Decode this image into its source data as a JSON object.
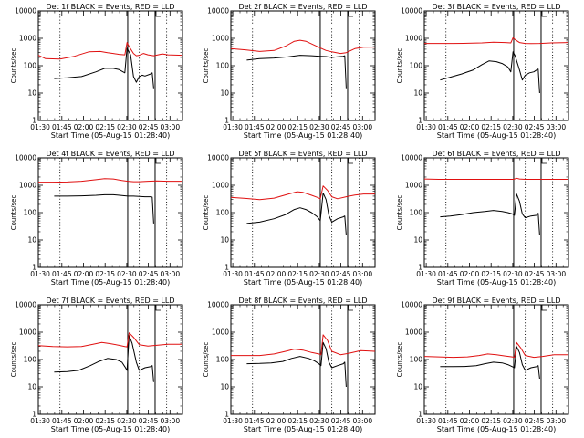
{
  "colors": {
    "events": "#000000",
    "lld": "#e01010",
    "frame": "#000000",
    "marker_solid": "#000000",
    "marker_dotted": "#000000"
  },
  "chart_data": [
    {
      "type": "line",
      "title": "Det 1f BLACK = Events, RED = LLD",
      "xlabel": "Start Time (05-Aug-15 01:28:40)",
      "ylabel": "Counts/sec",
      "xticks": [
        "01:30",
        "01:45",
        "02:00",
        "02:15",
        "02:30",
        "02:45",
        "03:00"
      ],
      "xlim_min": [
        0,
        100
      ],
      "y_log": true,
      "ylim": [
        1,
        10000
      ],
      "yticks": [
        "1",
        "10",
        "100",
        "1000",
        "10000"
      ],
      "markers_dotted_min": [
        15,
        70,
        89
      ],
      "markers_solid_min": [
        62,
        81
      ],
      "series": [
        {
          "name": "BLACK",
          "x": [
            11,
            20,
            30,
            40,
            46,
            52,
            56,
            60,
            61.5,
            64,
            66,
            68,
            70,
            72,
            74,
            78,
            79,
            80
          ],
          "y": [
            34,
            36,
            40,
            60,
            80,
            80,
            72,
            55,
            440,
            250,
            40,
            25,
            40,
            45,
            42,
            50,
            55,
            15
          ]
        },
        {
          "name": "RED",
          "x": [
            0,
            5,
            15,
            25,
            35,
            43,
            48,
            52,
            56,
            60,
            61.5,
            63,
            66,
            68,
            70,
            73,
            76,
            80,
            86,
            90,
            100
          ],
          "y": [
            240,
            180,
            175,
            220,
            320,
            330,
            300,
            280,
            260,
            250,
            700,
            500,
            280,
            230,
            240,
            280,
            250,
            230,
            270,
            250,
            240
          ]
        }
      ]
    },
    {
      "type": "line",
      "title": "Det 2f BLACK = Events, RED = LLD",
      "xlabel": "Start Time (05-Aug-15 01:28:40)",
      "ylabel": "Counts/sec",
      "xticks": [
        "01:30",
        "01:45",
        "02:00",
        "02:15",
        "02:30",
        "02:45",
        "03:00"
      ],
      "xlim_min": [
        0,
        100
      ],
      "y_log": true,
      "ylim": [
        1,
        10000
      ],
      "yticks": [
        "1",
        "10",
        "100",
        "1000",
        "10000"
      ],
      "markers_dotted_min": [
        15,
        70,
        89
      ],
      "markers_solid_min": [
        62,
        81
      ],
      "series": [
        {
          "name": "BLACK",
          "x": [
            11,
            20,
            30,
            40,
            48,
            56,
            62,
            66,
            70,
            74,
            78,
            79,
            80
          ],
          "y": [
            160,
            180,
            190,
            210,
            240,
            230,
            220,
            215,
            200,
            210,
            220,
            230,
            15
          ]
        },
        {
          "name": "RED",
          "x": [
            0,
            10,
            20,
            30,
            38,
            44,
            48,
            52,
            58,
            64,
            66,
            70,
            76,
            80,
            86,
            92,
            100
          ],
          "y": [
            420,
            380,
            330,
            360,
            520,
            780,
            850,
            780,
            560,
            400,
            360,
            320,
            280,
            300,
            420,
            470,
            480
          ]
        }
      ]
    },
    {
      "type": "line",
      "title": "Det 3f BLACK = Events, RED = LLD",
      "xlabel": "Start Time (05-Aug-15 01:28:40)",
      "ylabel": "Counts/sec",
      "xticks": [
        "01:30",
        "01:45",
        "02:00",
        "02:15",
        "02:30",
        "02:45",
        "03:00"
      ],
      "xlim_min": [
        0,
        100
      ],
      "y_log": true,
      "ylim": [
        1,
        10000
      ],
      "yticks": [
        "1",
        "10",
        "100",
        "1000",
        "10000"
      ],
      "markers_dotted_min": [
        15,
        70,
        89
      ],
      "markers_solid_min": [
        62,
        81
      ],
      "series": [
        {
          "name": "BLACK",
          "x": [
            11,
            18,
            26,
            34,
            40,
            45,
            50,
            54,
            58,
            60,
            61.5,
            63,
            66,
            68,
            70,
            73,
            76,
            78,
            79,
            80
          ],
          "y": [
            30,
            38,
            50,
            70,
            110,
            150,
            140,
            120,
            90,
            60,
            320,
            230,
            70,
            30,
            45,
            55,
            60,
            70,
            75,
            10
          ]
        },
        {
          "name": "RED",
          "x": [
            0,
            10,
            20,
            30,
            40,
            48,
            56,
            60,
            61.5,
            63,
            66,
            70,
            74,
            80,
            88,
            100
          ],
          "y": [
            650,
            650,
            650,
            660,
            680,
            720,
            700,
            680,
            1050,
            900,
            700,
            650,
            640,
            650,
            680,
            700
          ]
        }
      ]
    },
    {
      "type": "line",
      "title": "Det 4f BLACK = Events, RED = LLD",
      "xlabel": "Start Time (05-Aug-15 01:28:40)",
      "ylabel": "Counts/sec",
      "xticks": [
        "01:30",
        "01:45",
        "02:00",
        "02:15",
        "02:30",
        "02:45",
        "03:00"
      ],
      "xlim_min": [
        0,
        100
      ],
      "y_log": true,
      "ylim": [
        1,
        10000
      ],
      "yticks": [
        "1",
        "10",
        "100",
        "1000",
        "10000"
      ],
      "markers_dotted_min": [
        15,
        70,
        89
      ],
      "markers_solid_min": [
        62,
        81
      ],
      "series": [
        {
          "name": "BLACK",
          "x": [
            11,
            20,
            30,
            40,
            46,
            52,
            58,
            62,
            66,
            70,
            74,
            78,
            79,
            80
          ],
          "y": [
            400,
            400,
            410,
            430,
            450,
            450,
            420,
            400,
            400,
            390,
            380,
            380,
            370,
            40
          ]
        },
        {
          "name": "RED",
          "x": [
            0,
            10,
            20,
            30,
            40,
            46,
            52,
            58,
            62,
            66,
            70,
            76,
            82,
            90,
            100
          ],
          "y": [
            1300,
            1300,
            1320,
            1400,
            1600,
            1750,
            1700,
            1500,
            1400,
            1350,
            1350,
            1400,
            1450,
            1400,
            1400
          ]
        }
      ]
    },
    {
      "type": "line",
      "title": "Det 5f BLACK = Events, RED = LLD",
      "xlabel": "Start Time (05-Aug-15 01:28:40)",
      "ylabel": "Counts/sec",
      "xticks": [
        "01:30",
        "01:45",
        "02:00",
        "02:15",
        "02:30",
        "02:45",
        "03:00"
      ],
      "xlim_min": [
        0,
        100
      ],
      "y_log": true,
      "ylim": [
        1,
        10000
      ],
      "yticks": [
        "1",
        "10",
        "100",
        "1000",
        "10000"
      ],
      "markers_dotted_min": [
        15,
        70,
        89
      ],
      "markers_solid_min": [
        62,
        81
      ],
      "series": [
        {
          "name": "BLACK",
          "x": [
            11,
            20,
            30,
            38,
            44,
            48,
            52,
            56,
            60,
            62,
            64,
            66,
            68,
            70,
            74,
            78,
            79,
            80
          ],
          "y": [
            40,
            45,
            60,
            85,
            130,
            150,
            130,
            100,
            70,
            50,
            520,
            300,
            80,
            45,
            60,
            70,
            75,
            15
          ]
        },
        {
          "name": "RED",
          "x": [
            0,
            10,
            20,
            30,
            40,
            46,
            50,
            56,
            60,
            62,
            64,
            67,
            70,
            74,
            80,
            86,
            92,
            100
          ],
          "y": [
            360,
            330,
            300,
            340,
            480,
            580,
            550,
            430,
            360,
            320,
            950,
            650,
            380,
            320,
            380,
            440,
            480,
            480
          ]
        }
      ]
    },
    {
      "type": "line",
      "title": "Det 6f BLACK = Events, RED = LLD",
      "xlabel": "Start Time (05-Aug-15 01:28:40)",
      "ylabel": "Counts/sec",
      "xticks": [
        "01:30",
        "01:45",
        "02:00",
        "02:15",
        "02:30",
        "02:45",
        "03:00"
      ],
      "xlim_min": [
        0,
        100
      ],
      "y_log": true,
      "ylim": [
        1,
        10000
      ],
      "yticks": [
        "1",
        "10",
        "100",
        "1000",
        "10000"
      ],
      "markers_dotted_min": [
        15,
        70,
        89
      ],
      "markers_solid_min": [
        62,
        81
      ],
      "series": [
        {
          "name": "BLACK",
          "x": [
            11,
            18,
            26,
            34,
            42,
            48,
            54,
            58,
            61,
            62.5,
            64,
            66,
            68,
            70,
            74,
            78,
            79,
            80
          ],
          "y": [
            70,
            75,
            85,
            100,
            110,
            120,
            110,
            100,
            90,
            80,
            480,
            260,
            90,
            65,
            75,
            80,
            95,
            15
          ]
        },
        {
          "name": "RED",
          "x": [
            0,
            10,
            20,
            30,
            40,
            50,
            56,
            60,
            62,
            64,
            66,
            70,
            76,
            82,
            90,
            100
          ],
          "y": [
            1700,
            1650,
            1650,
            1650,
            1650,
            1650,
            1650,
            1650,
            1650,
            1800,
            1700,
            1650,
            1650,
            1650,
            1650,
            1650
          ]
        }
      ]
    },
    {
      "type": "line",
      "title": "Det 7f BLACK = Events, RED = LLD",
      "xlabel": "Start Time (05-Aug-15 01:28:40)",
      "ylabel": "Counts/sec",
      "xticks": [
        "01:30",
        "01:45",
        "02:00",
        "02:15",
        "02:30",
        "02:45",
        "03:00"
      ],
      "xlim_min": [
        0,
        100
      ],
      "y_log": true,
      "ylim": [
        1,
        10000
      ],
      "yticks": [
        "1",
        "10",
        "100",
        "1000",
        "10000"
      ],
      "markers_dotted_min": [
        15,
        70,
        89
      ],
      "markers_solid_min": [
        62,
        81
      ],
      "series": [
        {
          "name": "BLACK",
          "x": [
            11,
            20,
            28,
            36,
            42,
            48,
            54,
            58,
            60,
            61.5,
            63,
            65,
            68,
            70,
            74,
            78,
            79,
            80
          ],
          "y": [
            35,
            36,
            40,
            60,
            85,
            110,
            100,
            80,
            55,
            40,
            750,
            400,
            80,
            40,
            50,
            55,
            60,
            15
          ]
        },
        {
          "name": "RED",
          "x": [
            0,
            10,
            20,
            30,
            38,
            44,
            50,
            56,
            60,
            61.5,
            63,
            66,
            70,
            76,
            82,
            90,
            100
          ],
          "y": [
            320,
            300,
            290,
            300,
            360,
            420,
            380,
            330,
            300,
            290,
            950,
            650,
            350,
            310,
            330,
            360,
            360
          ]
        }
      ]
    },
    {
      "type": "line",
      "title": "Det 8f BLACK = Events, RED = LLD",
      "xlabel": "Start Time (05-Aug-15 01:28:40)",
      "ylabel": "Counts/sec",
      "xticks": [
        "01:30",
        "01:45",
        "02:00",
        "02:15",
        "02:30",
        "02:45",
        "03:00"
      ],
      "xlim_min": [
        0,
        100
      ],
      "y_log": true,
      "ylim": [
        1,
        10000
      ],
      "yticks": [
        "1",
        "10",
        "100",
        "1000",
        "10000"
      ],
      "markers_dotted_min": [
        15,
        70,
        89
      ],
      "markers_solid_min": [
        62,
        81
      ],
      "series": [
        {
          "name": "BLACK",
          "x": [
            11,
            20,
            28,
            36,
            42,
            48,
            54,
            58,
            61,
            62.5,
            64,
            66,
            68,
            70,
            74,
            78,
            79,
            80
          ],
          "y": [
            70,
            72,
            75,
            85,
            110,
            130,
            110,
            90,
            70,
            60,
            420,
            250,
            80,
            50,
            60,
            70,
            80,
            10
          ]
        },
        {
          "name": "RED",
          "x": [
            0,
            10,
            20,
            30,
            38,
            44,
            50,
            56,
            61,
            62.5,
            64,
            67,
            70,
            76,
            82,
            90,
            100
          ],
          "y": [
            140,
            140,
            140,
            160,
            200,
            240,
            220,
            180,
            160,
            150,
            800,
            500,
            200,
            150,
            170,
            210,
            200
          ]
        }
      ]
    },
    {
      "type": "line",
      "title": "Det 9f BLACK = Events, RED = LLD",
      "xlabel": "Start Time (05-Aug-15 01:28:40)",
      "ylabel": "Counts/sec",
      "xticks": [
        "01:30",
        "01:45",
        "02:00",
        "02:15",
        "02:30",
        "02:45",
        "03:00"
      ],
      "xlim_min": [
        0,
        100
      ],
      "y_log": true,
      "ylim": [
        1,
        10000
      ],
      "yticks": [
        "1",
        "10",
        "100",
        "1000",
        "10000"
      ],
      "markers_dotted_min": [
        15,
        70,
        89
      ],
      "markers_solid_min": [
        62,
        81
      ],
      "series": [
        {
          "name": "BLACK",
          "x": [
            11,
            20,
            28,
            36,
            42,
            48,
            54,
            58,
            61,
            62.5,
            64,
            66,
            68,
            70,
            74,
            78,
            79,
            80
          ],
          "y": [
            55,
            55,
            56,
            60,
            70,
            80,
            75,
            65,
            55,
            50,
            300,
            180,
            65,
            40,
            50,
            55,
            60,
            20
          ]
        },
        {
          "name": "RED",
          "x": [
            0,
            10,
            20,
            30,
            38,
            44,
            50,
            56,
            61,
            62.5,
            64,
            67,
            70,
            76,
            82,
            90,
            100
          ],
          "y": [
            130,
            125,
            120,
            125,
            140,
            160,
            150,
            135,
            125,
            120,
            420,
            260,
            140,
            120,
            130,
            150,
            150
          ]
        }
      ]
    }
  ]
}
